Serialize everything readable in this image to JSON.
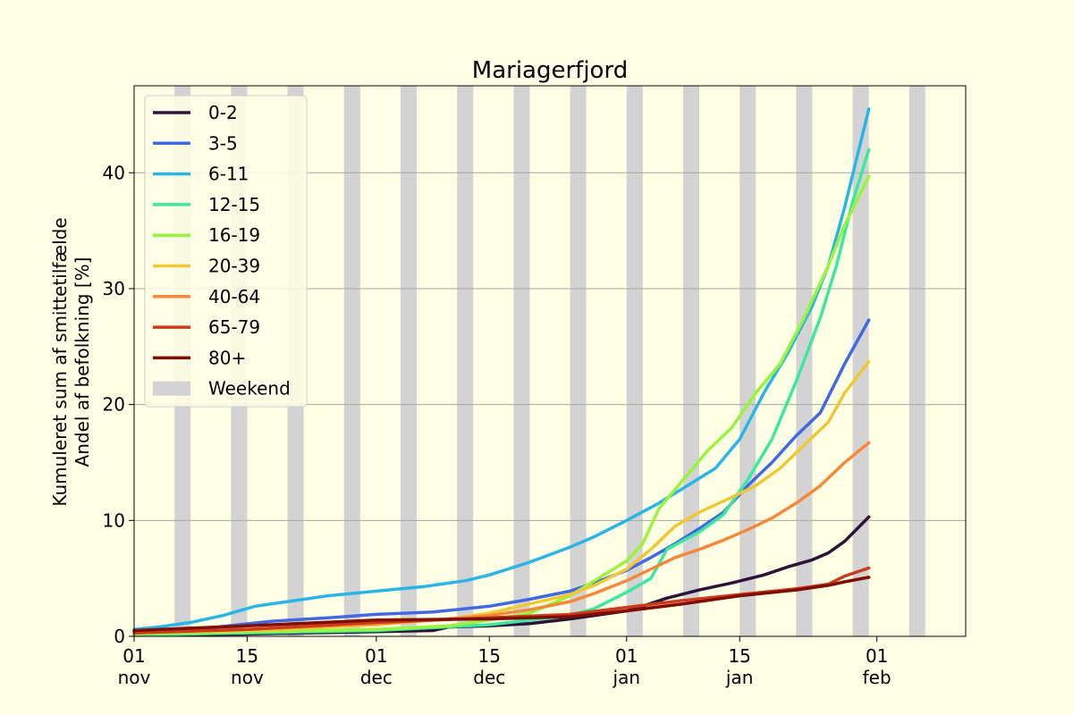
{
  "chart_data": {
    "type": "line",
    "title": "Mariagerfjord",
    "ylabel_lines": [
      "Kumuleret sum af smittetilfælde",
      "Andel af befolkning [%]"
    ],
    "xlabel": "",
    "xlim": [
      "2021-11-01",
      "2022-02-12"
    ],
    "ylim": [
      0,
      47.5
    ],
    "yticks": [
      0,
      10,
      20,
      30,
      40
    ],
    "xticks": [
      {
        "date": "2021-11-01",
        "day": "01",
        "month": "nov"
      },
      {
        "date": "2021-11-15",
        "day": "15",
        "month": "nov"
      },
      {
        "date": "2021-12-01",
        "day": "01",
        "month": "dec"
      },
      {
        "date": "2021-12-15",
        "day": "15",
        "month": "dec"
      },
      {
        "date": "2022-01-01",
        "day": "01",
        "month": "jan"
      },
      {
        "date": "2022-01-15",
        "day": "15",
        "month": "jan"
      },
      {
        "date": "2022-02-01",
        "day": "01",
        "month": "feb"
      }
    ],
    "grid": "horizontal",
    "legend_position": "top-left",
    "weekend_label": "Weekend",
    "weekend_color": "#d3d3d3",
    "weekend_starts": [
      "2021-11-06",
      "2021-11-13",
      "2021-11-20",
      "2021-11-27",
      "2021-12-04",
      "2021-12-11",
      "2021-12-18",
      "2021-12-25",
      "2022-01-01",
      "2022-01-08",
      "2022-01-15",
      "2022-01-22",
      "2022-01-29",
      "2022-02-05"
    ],
    "series": [
      {
        "name": "0-2",
        "color": "#2d1338",
        "points": [
          [
            "2021-11-01",
            0.1
          ],
          [
            "2021-11-15",
            0.2
          ],
          [
            "2021-12-01",
            0.4
          ],
          [
            "2021-12-08",
            0.5
          ],
          [
            "2021-12-10",
            0.8
          ],
          [
            "2021-12-15",
            0.9
          ],
          [
            "2021-12-20",
            1.1
          ],
          [
            "2021-12-25",
            1.5
          ],
          [
            "2022-01-01",
            2.2
          ],
          [
            "2022-01-03",
            2.6
          ],
          [
            "2022-01-06",
            3.3
          ],
          [
            "2022-01-10",
            4.0
          ],
          [
            "2022-01-14",
            4.6
          ],
          [
            "2022-01-18",
            5.3
          ],
          [
            "2022-01-21",
            6.0
          ],
          [
            "2022-01-24",
            6.6
          ],
          [
            "2022-01-26",
            7.2
          ],
          [
            "2022-01-28",
            8.2
          ],
          [
            "2022-01-31",
            10.3
          ]
        ]
      },
      {
        "name": "3-5",
        "color": "#4169e1",
        "points": [
          [
            "2021-11-01",
            0.3
          ],
          [
            "2021-11-10",
            0.7
          ],
          [
            "2021-11-18",
            1.3
          ],
          [
            "2021-11-25",
            1.6
          ],
          [
            "2021-12-01",
            1.9
          ],
          [
            "2021-12-08",
            2.1
          ],
          [
            "2021-12-15",
            2.6
          ],
          [
            "2021-12-20",
            3.2
          ],
          [
            "2021-12-25",
            3.9
          ],
          [
            "2021-12-28",
            4.6
          ],
          [
            "2022-01-01",
            5.7
          ],
          [
            "2022-01-04",
            6.8
          ],
          [
            "2022-01-07",
            8.0
          ],
          [
            "2022-01-10",
            9.3
          ],
          [
            "2022-01-13",
            10.7
          ],
          [
            "2022-01-16",
            13.0
          ],
          [
            "2022-01-19",
            15.0
          ],
          [
            "2022-01-22",
            17.3
          ],
          [
            "2022-01-25",
            19.3
          ],
          [
            "2022-01-28",
            23.5
          ],
          [
            "2022-01-31",
            27.3
          ]
        ]
      },
      {
        "name": "6-11",
        "color": "#29b6e6",
        "points": [
          [
            "2021-11-01",
            0.6
          ],
          [
            "2021-11-04",
            0.8
          ],
          [
            "2021-11-08",
            1.2
          ],
          [
            "2021-11-12",
            1.8
          ],
          [
            "2021-11-16",
            2.6
          ],
          [
            "2021-11-20",
            3.0
          ],
          [
            "2021-11-25",
            3.5
          ],
          [
            "2021-12-01",
            3.9
          ],
          [
            "2021-12-07",
            4.3
          ],
          [
            "2021-12-12",
            4.8
          ],
          [
            "2021-12-15",
            5.3
          ],
          [
            "2021-12-20",
            6.4
          ],
          [
            "2021-12-25",
            7.7
          ],
          [
            "2021-12-28",
            8.6
          ],
          [
            "2022-01-01",
            10.0
          ],
          [
            "2022-01-05",
            11.5
          ],
          [
            "2022-01-09",
            13.2
          ],
          [
            "2022-01-12",
            14.5
          ],
          [
            "2022-01-15",
            17.0
          ],
          [
            "2022-01-18",
            21.0
          ],
          [
            "2022-01-21",
            24.5
          ],
          [
            "2022-01-24",
            28.5
          ],
          [
            "2022-01-26",
            32.0
          ],
          [
            "2022-01-28",
            37.0
          ],
          [
            "2022-01-31",
            45.5
          ]
        ]
      },
      {
        "name": "12-15",
        "color": "#3ce8a0",
        "points": [
          [
            "2021-11-01",
            0.1
          ],
          [
            "2021-11-15",
            0.3
          ],
          [
            "2021-12-01",
            0.5
          ],
          [
            "2021-12-15",
            1.0
          ],
          [
            "2021-12-25",
            1.8
          ],
          [
            "2021-12-28",
            2.4
          ],
          [
            "2022-01-01",
            3.8
          ],
          [
            "2022-01-04",
            5.0
          ],
          [
            "2022-01-06",
            7.5
          ],
          [
            "2022-01-10",
            9.0
          ],
          [
            "2022-01-13",
            10.5
          ],
          [
            "2022-01-16",
            13.5
          ],
          [
            "2022-01-19",
            17.0
          ],
          [
            "2022-01-22",
            22.0
          ],
          [
            "2022-01-25",
            27.5
          ],
          [
            "2022-01-27",
            32.0
          ],
          [
            "2022-01-29",
            37.5
          ],
          [
            "2022-01-31",
            42.0
          ]
        ]
      },
      {
        "name": "16-19",
        "color": "#99f53c",
        "points": [
          [
            "2021-11-01",
            0.2
          ],
          [
            "2021-11-15",
            0.4
          ],
          [
            "2021-12-01",
            0.6
          ],
          [
            "2021-12-10",
            0.9
          ],
          [
            "2021-12-15",
            1.4
          ],
          [
            "2021-12-20",
            2.0
          ],
          [
            "2021-12-25",
            3.5
          ],
          [
            "2021-12-28",
            4.8
          ],
          [
            "2022-01-01",
            6.5
          ],
          [
            "2022-01-03",
            8.0
          ],
          [
            "2022-01-05",
            11.0
          ],
          [
            "2022-01-08",
            13.5
          ],
          [
            "2022-01-11",
            16.0
          ],
          [
            "2022-01-14",
            18.0
          ],
          [
            "2022-01-17",
            21.0
          ],
          [
            "2022-01-20",
            23.5
          ],
          [
            "2022-01-23",
            27.5
          ],
          [
            "2022-01-26",
            32.0
          ],
          [
            "2022-01-28",
            35.5
          ],
          [
            "2022-01-31",
            39.7
          ]
        ]
      },
      {
        "name": "20-39",
        "color": "#f0c834",
        "points": [
          [
            "2021-11-01",
            0.3
          ],
          [
            "2021-11-15",
            0.5
          ],
          [
            "2021-12-01",
            1.0
          ],
          [
            "2021-12-10",
            1.5
          ],
          [
            "2021-12-15",
            2.0
          ],
          [
            "2021-12-20",
            2.8
          ],
          [
            "2021-12-25",
            3.6
          ],
          [
            "2021-12-28",
            4.4
          ],
          [
            "2022-01-01",
            5.8
          ],
          [
            "2022-01-04",
            7.5
          ],
          [
            "2022-01-07",
            9.5
          ],
          [
            "2022-01-10",
            10.7
          ],
          [
            "2022-01-14",
            12.0
          ],
          [
            "2022-01-17",
            13.0
          ],
          [
            "2022-01-20",
            14.5
          ],
          [
            "2022-01-23",
            16.5
          ],
          [
            "2022-01-26",
            18.5
          ],
          [
            "2022-01-28",
            21.0
          ],
          [
            "2022-01-31",
            23.7
          ]
        ]
      },
      {
        "name": "40-64",
        "color": "#f5883a",
        "points": [
          [
            "2021-11-01",
            0.3
          ],
          [
            "2021-11-15",
            0.6
          ],
          [
            "2021-12-01",
            1.1
          ],
          [
            "2021-12-10",
            1.5
          ],
          [
            "2021-12-15",
            1.8
          ],
          [
            "2021-12-20",
            2.3
          ],
          [
            "2021-12-25",
            3.0
          ],
          [
            "2021-12-28",
            3.7
          ],
          [
            "2022-01-01",
            4.8
          ],
          [
            "2022-01-04",
            5.8
          ],
          [
            "2022-01-07",
            6.8
          ],
          [
            "2022-01-10",
            7.5
          ],
          [
            "2022-01-13",
            8.3
          ],
          [
            "2022-01-16",
            9.2
          ],
          [
            "2022-01-19",
            10.2
          ],
          [
            "2022-01-22",
            11.5
          ],
          [
            "2022-01-25",
            13.0
          ],
          [
            "2022-01-28",
            15.0
          ],
          [
            "2022-01-31",
            16.7
          ]
        ]
      },
      {
        "name": "65-79",
        "color": "#cc3b1a",
        "points": [
          [
            "2021-11-01",
            0.3
          ],
          [
            "2021-11-15",
            0.6
          ],
          [
            "2021-12-01",
            1.2
          ],
          [
            "2021-12-15",
            1.6
          ],
          [
            "2021-12-25",
            1.9
          ],
          [
            "2022-01-01",
            2.5
          ],
          [
            "2022-01-08",
            3.1
          ],
          [
            "2022-01-15",
            3.6
          ],
          [
            "2022-01-22",
            4.1
          ],
          [
            "2022-01-26",
            4.5
          ],
          [
            "2022-01-28",
            5.2
          ],
          [
            "2022-01-31",
            5.9
          ]
        ]
      },
      {
        "name": "80+",
        "color": "#800e00",
        "points": [
          [
            "2021-11-01",
            0.5
          ],
          [
            "2021-11-15",
            0.9
          ],
          [
            "2021-12-01",
            1.4
          ],
          [
            "2021-12-15",
            1.5
          ],
          [
            "2021-12-25",
            1.7
          ],
          [
            "2022-01-01",
            2.2
          ],
          [
            "2022-01-08",
            2.8
          ],
          [
            "2022-01-15",
            3.5
          ],
          [
            "2022-01-22",
            4.0
          ],
          [
            "2022-01-26",
            4.4
          ],
          [
            "2022-01-28",
            4.7
          ],
          [
            "2022-01-31",
            5.1
          ]
        ]
      }
    ]
  }
}
